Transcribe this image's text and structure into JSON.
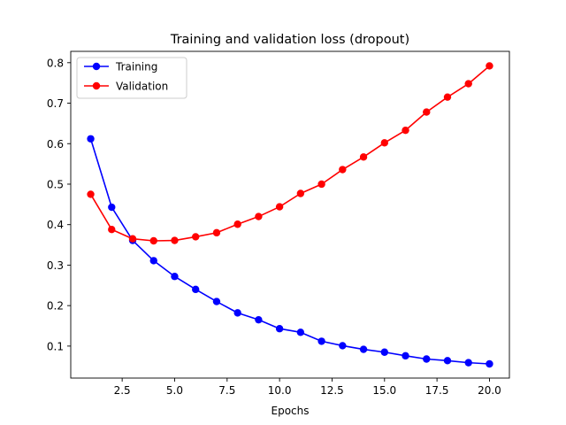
{
  "chart_data": {
    "type": "line",
    "title": "Training and validation loss (dropout)",
    "xlabel": "Epochs",
    "ylabel": "",
    "xlim": [
      0.05,
      20.95
    ],
    "ylim": [
      0.021,
      0.828
    ],
    "x_ticks": [
      2.5,
      5.0,
      7.5,
      10.0,
      12.5,
      15.0,
      17.5,
      20.0
    ],
    "x_tick_labels": [
      "2.5",
      "5.0",
      "7.5",
      "10.0",
      "12.5",
      "15.0",
      "17.5",
      "20.0"
    ],
    "y_ticks": [
      0.1,
      0.2,
      0.3,
      0.4,
      0.5,
      0.6,
      0.7,
      0.8
    ],
    "y_tick_labels": [
      "0.1",
      "0.2",
      "0.3",
      "0.4",
      "0.5",
      "0.6",
      "0.7",
      "0.8"
    ],
    "grid": false,
    "legend_position": "top-left",
    "x": [
      1,
      2,
      3,
      4,
      5,
      6,
      7,
      8,
      9,
      10,
      11,
      12,
      13,
      14,
      15,
      16,
      17,
      18,
      19,
      20
    ],
    "series": [
      {
        "name": "Training",
        "color": "#0000ff",
        "marker": "circle",
        "values": [
          0.612,
          0.443,
          0.361,
          0.311,
          0.272,
          0.24,
          0.21,
          0.182,
          0.165,
          0.143,
          0.134,
          0.112,
          0.101,
          0.092,
          0.085,
          0.076,
          0.068,
          0.064,
          0.059,
          0.056
        ]
      },
      {
        "name": "Validation",
        "color": "#ff0000",
        "marker": "circle",
        "values": [
          0.475,
          0.388,
          0.365,
          0.36,
          0.361,
          0.37,
          0.38,
          0.401,
          0.42,
          0.444,
          0.477,
          0.5,
          0.536,
          0.567,
          0.602,
          0.633,
          0.678,
          0.715,
          0.748,
          0.792
        ]
      }
    ]
  }
}
